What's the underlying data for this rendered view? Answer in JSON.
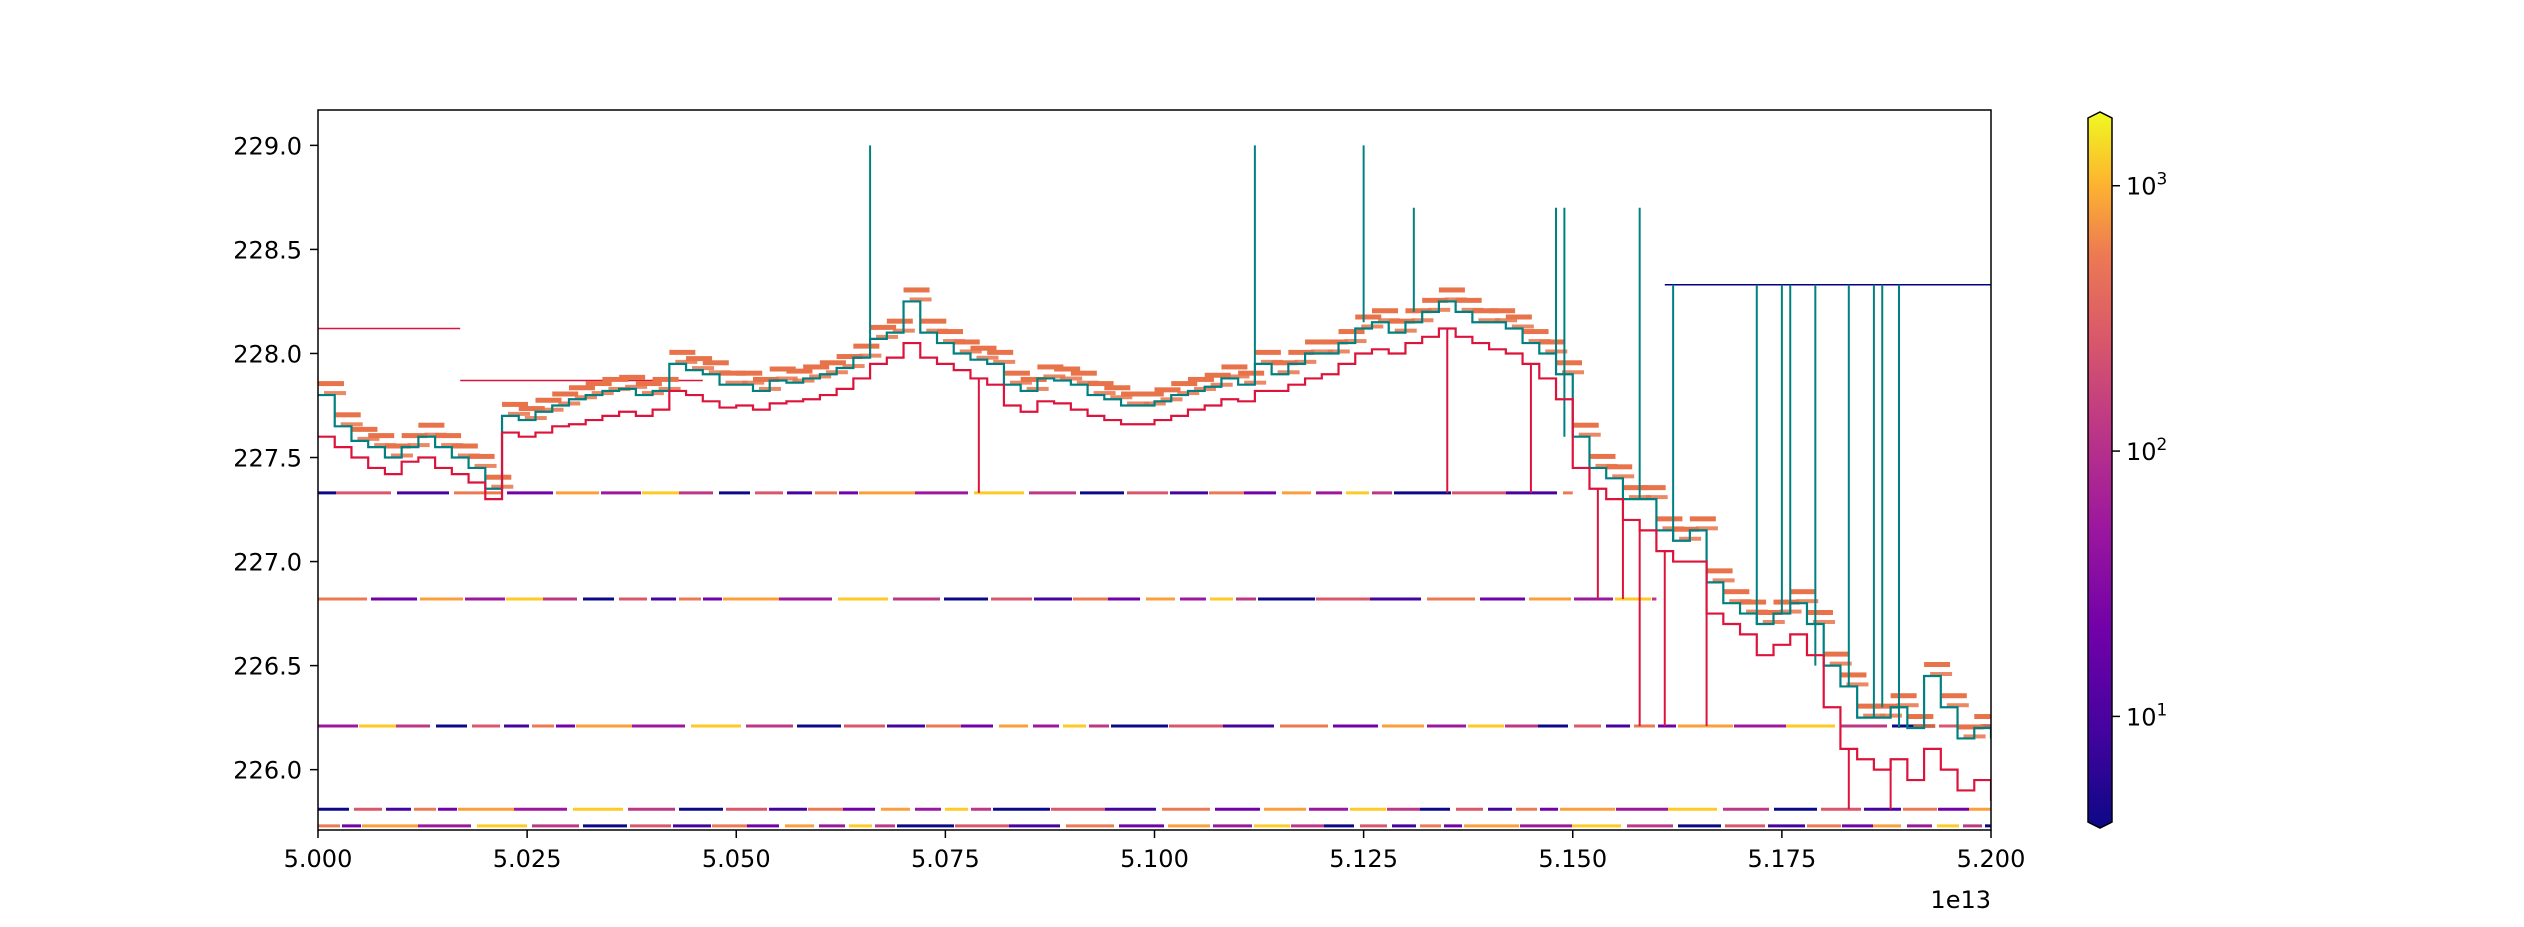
{
  "chart_data": {
    "type": "line",
    "title": "",
    "xlabel": "",
    "ylabel": "",
    "x_offset_label": "1e13",
    "xlim": [
      5.0,
      5.2
    ],
    "ylim": [
      225.71,
      229.17
    ],
    "grid": false,
    "x_ticks": [
      {
        "value": 5.0,
        "label": "5.000"
      },
      {
        "value": 5.025,
        "label": "5.025"
      },
      {
        "value": 5.05,
        "label": "5.050"
      },
      {
        "value": 5.075,
        "label": "5.075"
      },
      {
        "value": 5.1,
        "label": "5.100"
      },
      {
        "value": 5.125,
        "label": "5.125"
      },
      {
        "value": 5.15,
        "label": "5.150"
      },
      {
        "value": 5.175,
        "label": "5.175"
      },
      {
        "value": 5.2,
        "label": "5.200"
      }
    ],
    "y_ticks": [
      {
        "value": 226.0,
        "label": "226.0"
      },
      {
        "value": 226.5,
        "label": "226.5"
      },
      {
        "value": 227.0,
        "label": "227.0"
      },
      {
        "value": 227.5,
        "label": "227.5"
      },
      {
        "value": 228.0,
        "label": "228.0"
      },
      {
        "value": 228.5,
        "label": "228.5"
      },
      {
        "value": 229.0,
        "label": "229.0"
      }
    ],
    "colorbar": {
      "scale": "log",
      "colormap": "plasma",
      "range": [
        4,
        1800
      ],
      "ticks": [
        {
          "value": 10,
          "base": "10",
          "exp": "1"
        },
        {
          "value": 100,
          "base": "10",
          "exp": "2"
        },
        {
          "value": 1000,
          "base": "10",
          "exp": "3"
        }
      ]
    },
    "colors": {
      "ask_line": "#008080",
      "bid_line": "#dc143c",
      "level": "#e8734a",
      "thin_level": "#000080"
    },
    "horizontal_levels": [
      {
        "y": 227.33,
        "x_start": 5.0,
        "x_end": 5.15
      },
      {
        "y": 226.82,
        "x_start": 5.0,
        "x_end": 5.16
      },
      {
        "y": 226.21,
        "x_start": 5.0,
        "x_end": 5.2
      },
      {
        "y": 225.81,
        "x_start": 5.0,
        "x_end": 5.2
      },
      {
        "y": 225.73,
        "x_start": 5.0,
        "x_end": 5.2
      },
      {
        "y": 228.12,
        "x_start": 5.0,
        "x_end": 5.017
      },
      {
        "y": 227.87,
        "x_start": 5.017,
        "x_end": 5.046
      },
      {
        "y": 228.33,
        "x_start": 5.161,
        "x_end": 5.2
      }
    ],
    "series": [
      {
        "role": "ask",
        "x": [
          5.0,
          5.002,
          5.004,
          5.006,
          5.008,
          5.01,
          5.012,
          5.014,
          5.016,
          5.018,
          5.02,
          5.022,
          5.024,
          5.026,
          5.028,
          5.03,
          5.032,
          5.034,
          5.036,
          5.038,
          5.04,
          5.042,
          5.044,
          5.046,
          5.048,
          5.05,
          5.052,
          5.054,
          5.056,
          5.058,
          5.06,
          5.062,
          5.064,
          5.066,
          5.068,
          5.07,
          5.072,
          5.074,
          5.076,
          5.078,
          5.08,
          5.082,
          5.084,
          5.086,
          5.088,
          5.09,
          5.092,
          5.094,
          5.096,
          5.098,
          5.1,
          5.102,
          5.104,
          5.106,
          5.108,
          5.11,
          5.112,
          5.114,
          5.116,
          5.118,
          5.12,
          5.122,
          5.124,
          5.126,
          5.128,
          5.13,
          5.132,
          5.134,
          5.136,
          5.138,
          5.14,
          5.142,
          5.144,
          5.146,
          5.148,
          5.15,
          5.152,
          5.154,
          5.156,
          5.158,
          5.16,
          5.162,
          5.164,
          5.166,
          5.168,
          5.17,
          5.172,
          5.174,
          5.176,
          5.178,
          5.18,
          5.182,
          5.184,
          5.186,
          5.188,
          5.19,
          5.192,
          5.194,
          5.196,
          5.198,
          5.2
        ],
        "y": [
          227.8,
          227.65,
          227.58,
          227.55,
          227.5,
          227.55,
          227.6,
          227.55,
          227.5,
          227.45,
          227.35,
          227.7,
          227.68,
          227.72,
          227.75,
          227.78,
          227.8,
          227.82,
          227.83,
          227.8,
          227.82,
          227.95,
          227.92,
          227.9,
          227.85,
          227.85,
          227.82,
          227.87,
          227.86,
          227.88,
          227.9,
          227.93,
          227.98,
          228.07,
          228.1,
          228.25,
          228.1,
          228.05,
          228.0,
          227.97,
          227.95,
          227.85,
          227.82,
          227.88,
          227.87,
          227.85,
          227.8,
          227.78,
          227.75,
          227.75,
          227.77,
          227.8,
          227.82,
          227.84,
          227.88,
          227.85,
          227.95,
          227.9,
          227.95,
          228.0,
          228.0,
          228.05,
          228.12,
          228.15,
          228.1,
          228.15,
          228.2,
          228.25,
          228.2,
          228.15,
          228.15,
          228.12,
          228.05,
          228.0,
          227.9,
          227.6,
          227.45,
          227.4,
          227.3,
          227.3,
          227.15,
          227.1,
          227.15,
          226.9,
          226.8,
          226.75,
          226.7,
          226.75,
          226.8,
          226.7,
          226.5,
          226.4,
          226.25,
          226.25,
          226.3,
          226.2,
          226.45,
          226.3,
          226.15,
          226.2,
          226.15
        ]
      },
      {
        "role": "bid",
        "x": [
          5.0,
          5.002,
          5.004,
          5.006,
          5.008,
          5.01,
          5.012,
          5.014,
          5.016,
          5.018,
          5.02,
          5.022,
          5.024,
          5.026,
          5.028,
          5.03,
          5.032,
          5.034,
          5.036,
          5.038,
          5.04,
          5.042,
          5.044,
          5.046,
          5.048,
          5.05,
          5.052,
          5.054,
          5.056,
          5.058,
          5.06,
          5.062,
          5.064,
          5.066,
          5.068,
          5.07,
          5.072,
          5.074,
          5.076,
          5.078,
          5.08,
          5.082,
          5.084,
          5.086,
          5.088,
          5.09,
          5.092,
          5.094,
          5.096,
          5.098,
          5.1,
          5.102,
          5.104,
          5.106,
          5.108,
          5.11,
          5.112,
          5.114,
          5.116,
          5.118,
          5.12,
          5.122,
          5.124,
          5.126,
          5.128,
          5.13,
          5.132,
          5.134,
          5.136,
          5.138,
          5.14,
          5.142,
          5.144,
          5.146,
          5.148,
          5.15,
          5.152,
          5.154,
          5.156,
          5.158,
          5.16,
          5.162,
          5.164,
          5.166,
          5.168,
          5.17,
          5.172,
          5.174,
          5.176,
          5.178,
          5.18,
          5.182,
          5.184,
          5.186,
          5.188,
          5.19,
          5.192,
          5.194,
          5.196,
          5.198,
          5.2
        ],
        "y": [
          227.6,
          227.55,
          227.5,
          227.45,
          227.42,
          227.48,
          227.5,
          227.45,
          227.42,
          227.38,
          227.3,
          227.62,
          227.6,
          227.62,
          227.65,
          227.66,
          227.68,
          227.7,
          227.72,
          227.7,
          227.73,
          227.82,
          227.8,
          227.77,
          227.74,
          227.75,
          227.73,
          227.76,
          227.77,
          227.78,
          227.8,
          227.83,
          227.88,
          227.95,
          227.98,
          228.05,
          227.98,
          227.95,
          227.92,
          227.88,
          227.85,
          227.75,
          227.72,
          227.77,
          227.76,
          227.73,
          227.7,
          227.68,
          227.66,
          227.66,
          227.68,
          227.7,
          227.73,
          227.75,
          227.78,
          227.77,
          227.82,
          227.82,
          227.85,
          227.88,
          227.9,
          227.95,
          228.0,
          228.02,
          228.0,
          228.05,
          228.08,
          228.12,
          228.08,
          228.05,
          228.02,
          228.0,
          227.95,
          227.88,
          227.78,
          227.45,
          227.35,
          227.3,
          227.2,
          227.15,
          227.05,
          227.0,
          227.0,
          226.75,
          226.7,
          226.65,
          226.55,
          226.6,
          226.65,
          226.55,
          226.3,
          226.1,
          226.05,
          226.0,
          226.05,
          225.95,
          226.1,
          226.0,
          225.9,
          225.95,
          225.85
        ]
      }
    ],
    "ask_spikes": [
      {
        "x": 5.066,
        "top": 229.0
      },
      {
        "x": 5.112,
        "top": 229.0
      },
      {
        "x": 5.125,
        "top": 229.0
      },
      {
        "x": 5.131,
        "top": 228.7
      },
      {
        "x": 5.148,
        "top": 228.7
      },
      {
        "x": 5.149,
        "top": 228.7
      },
      {
        "x": 5.158,
        "top": 228.7
      },
      {
        "x": 5.162,
        "top": 228.33
      },
      {
        "x": 5.172,
        "top": 228.33
      },
      {
        "x": 5.175,
        "top": 228.33
      },
      {
        "x": 5.176,
        "top": 228.33
      },
      {
        "x": 5.179,
        "top": 228.33
      },
      {
        "x": 5.183,
        "top": 228.33
      },
      {
        "x": 5.186,
        "top": 228.33
      },
      {
        "x": 5.187,
        "top": 228.33
      },
      {
        "x": 5.189,
        "top": 228.33
      }
    ],
    "bid_drops": [
      {
        "x": 5.079,
        "bottom": 227.33
      },
      {
        "x": 5.135,
        "bottom": 227.33
      },
      {
        "x": 5.145,
        "bottom": 227.33
      },
      {
        "x": 5.153,
        "bottom": 226.82
      },
      {
        "x": 5.156,
        "bottom": 226.82
      },
      {
        "x": 5.158,
        "bottom": 226.21
      },
      {
        "x": 5.161,
        "bottom": 226.21
      },
      {
        "x": 5.166,
        "bottom": 226.21
      },
      {
        "x": 5.183,
        "bottom": 225.81
      },
      {
        "x": 5.188,
        "bottom": 225.81
      }
    ]
  }
}
